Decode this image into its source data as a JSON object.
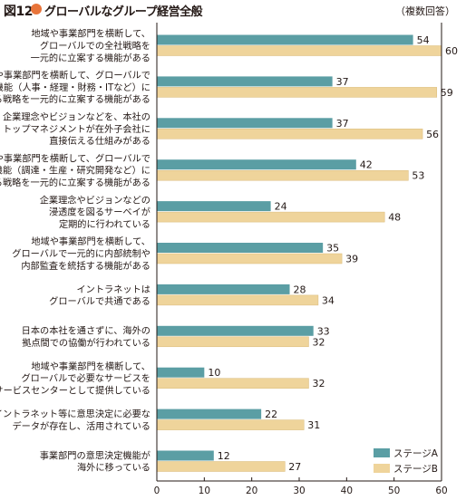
{
  "figure": {
    "number": "図12",
    "title": "グローバルなグループ経営全般",
    "note": "（複数回答）",
    "dot_color": "#e8743a"
  },
  "chart_data": {
    "type": "bar",
    "orientation": "horizontal",
    "title": "グローバルなグループ経営全般",
    "xlim": [
      0,
      60
    ],
    "xticks": [
      0,
      10,
      20,
      30,
      40,
      50,
      60
    ],
    "grid": false,
    "legend_position": "bottom-right",
    "categories": [
      [
        "地域や事業部門を横断して、",
        "グローバルでの全社戦略を",
        "一元的に立案する機能がある"
      ],
      [
        "地域や事業部門を横断して、グローバルで",
        "必要な間接機能（人事・経理・財務・ITなど）に",
        "関する戦略を一元的に立案する機能がある"
      ],
      [
        "企業理念やビジョンなどを、本社の",
        "トップマネジメントが在外子会社に",
        "直接伝える仕組みがある"
      ],
      [
        "地域や事業部門を横断して、グローバルで",
        "必要な機能（調達・生産・研究開発など）に",
        "関する戦略を一元的に立案する機能がある"
      ],
      [
        "企業理念やビジョンなどの",
        "浸透度を図るサーベイが",
        "定期的に行われている"
      ],
      [
        "地域や事業部門を横断して、",
        "グローバルで一元的に内部統制や",
        "内部監査を統括する機能がある"
      ],
      [
        "イントラネットは",
        "グローバルで共通である"
      ],
      [
        "日本の本社を通さずに、海外の",
        "拠点間での協働が行われている"
      ],
      [
        "地域や事業部門を横断して、",
        "グローバルで必要なサービスを",
        "シェアードサービスセンターとして提供している"
      ],
      [
        "イントラネット等に意思決定に必要な",
        "データが存在し、活用されている"
      ],
      [
        "事業部門の意思決定機能が",
        "海外に移っている"
      ]
    ],
    "series": [
      {
        "name": "ステージA",
        "color": "#5b9ea4",
        "values": [
          54,
          37,
          37,
          42,
          24,
          35,
          28,
          33,
          10,
          22,
          12
        ]
      },
      {
        "name": "ステージB",
        "color": "#efd49b",
        "values": [
          60,
          59,
          56,
          53,
          48,
          39,
          34,
          32,
          32,
          31,
          27
        ]
      }
    ]
  }
}
